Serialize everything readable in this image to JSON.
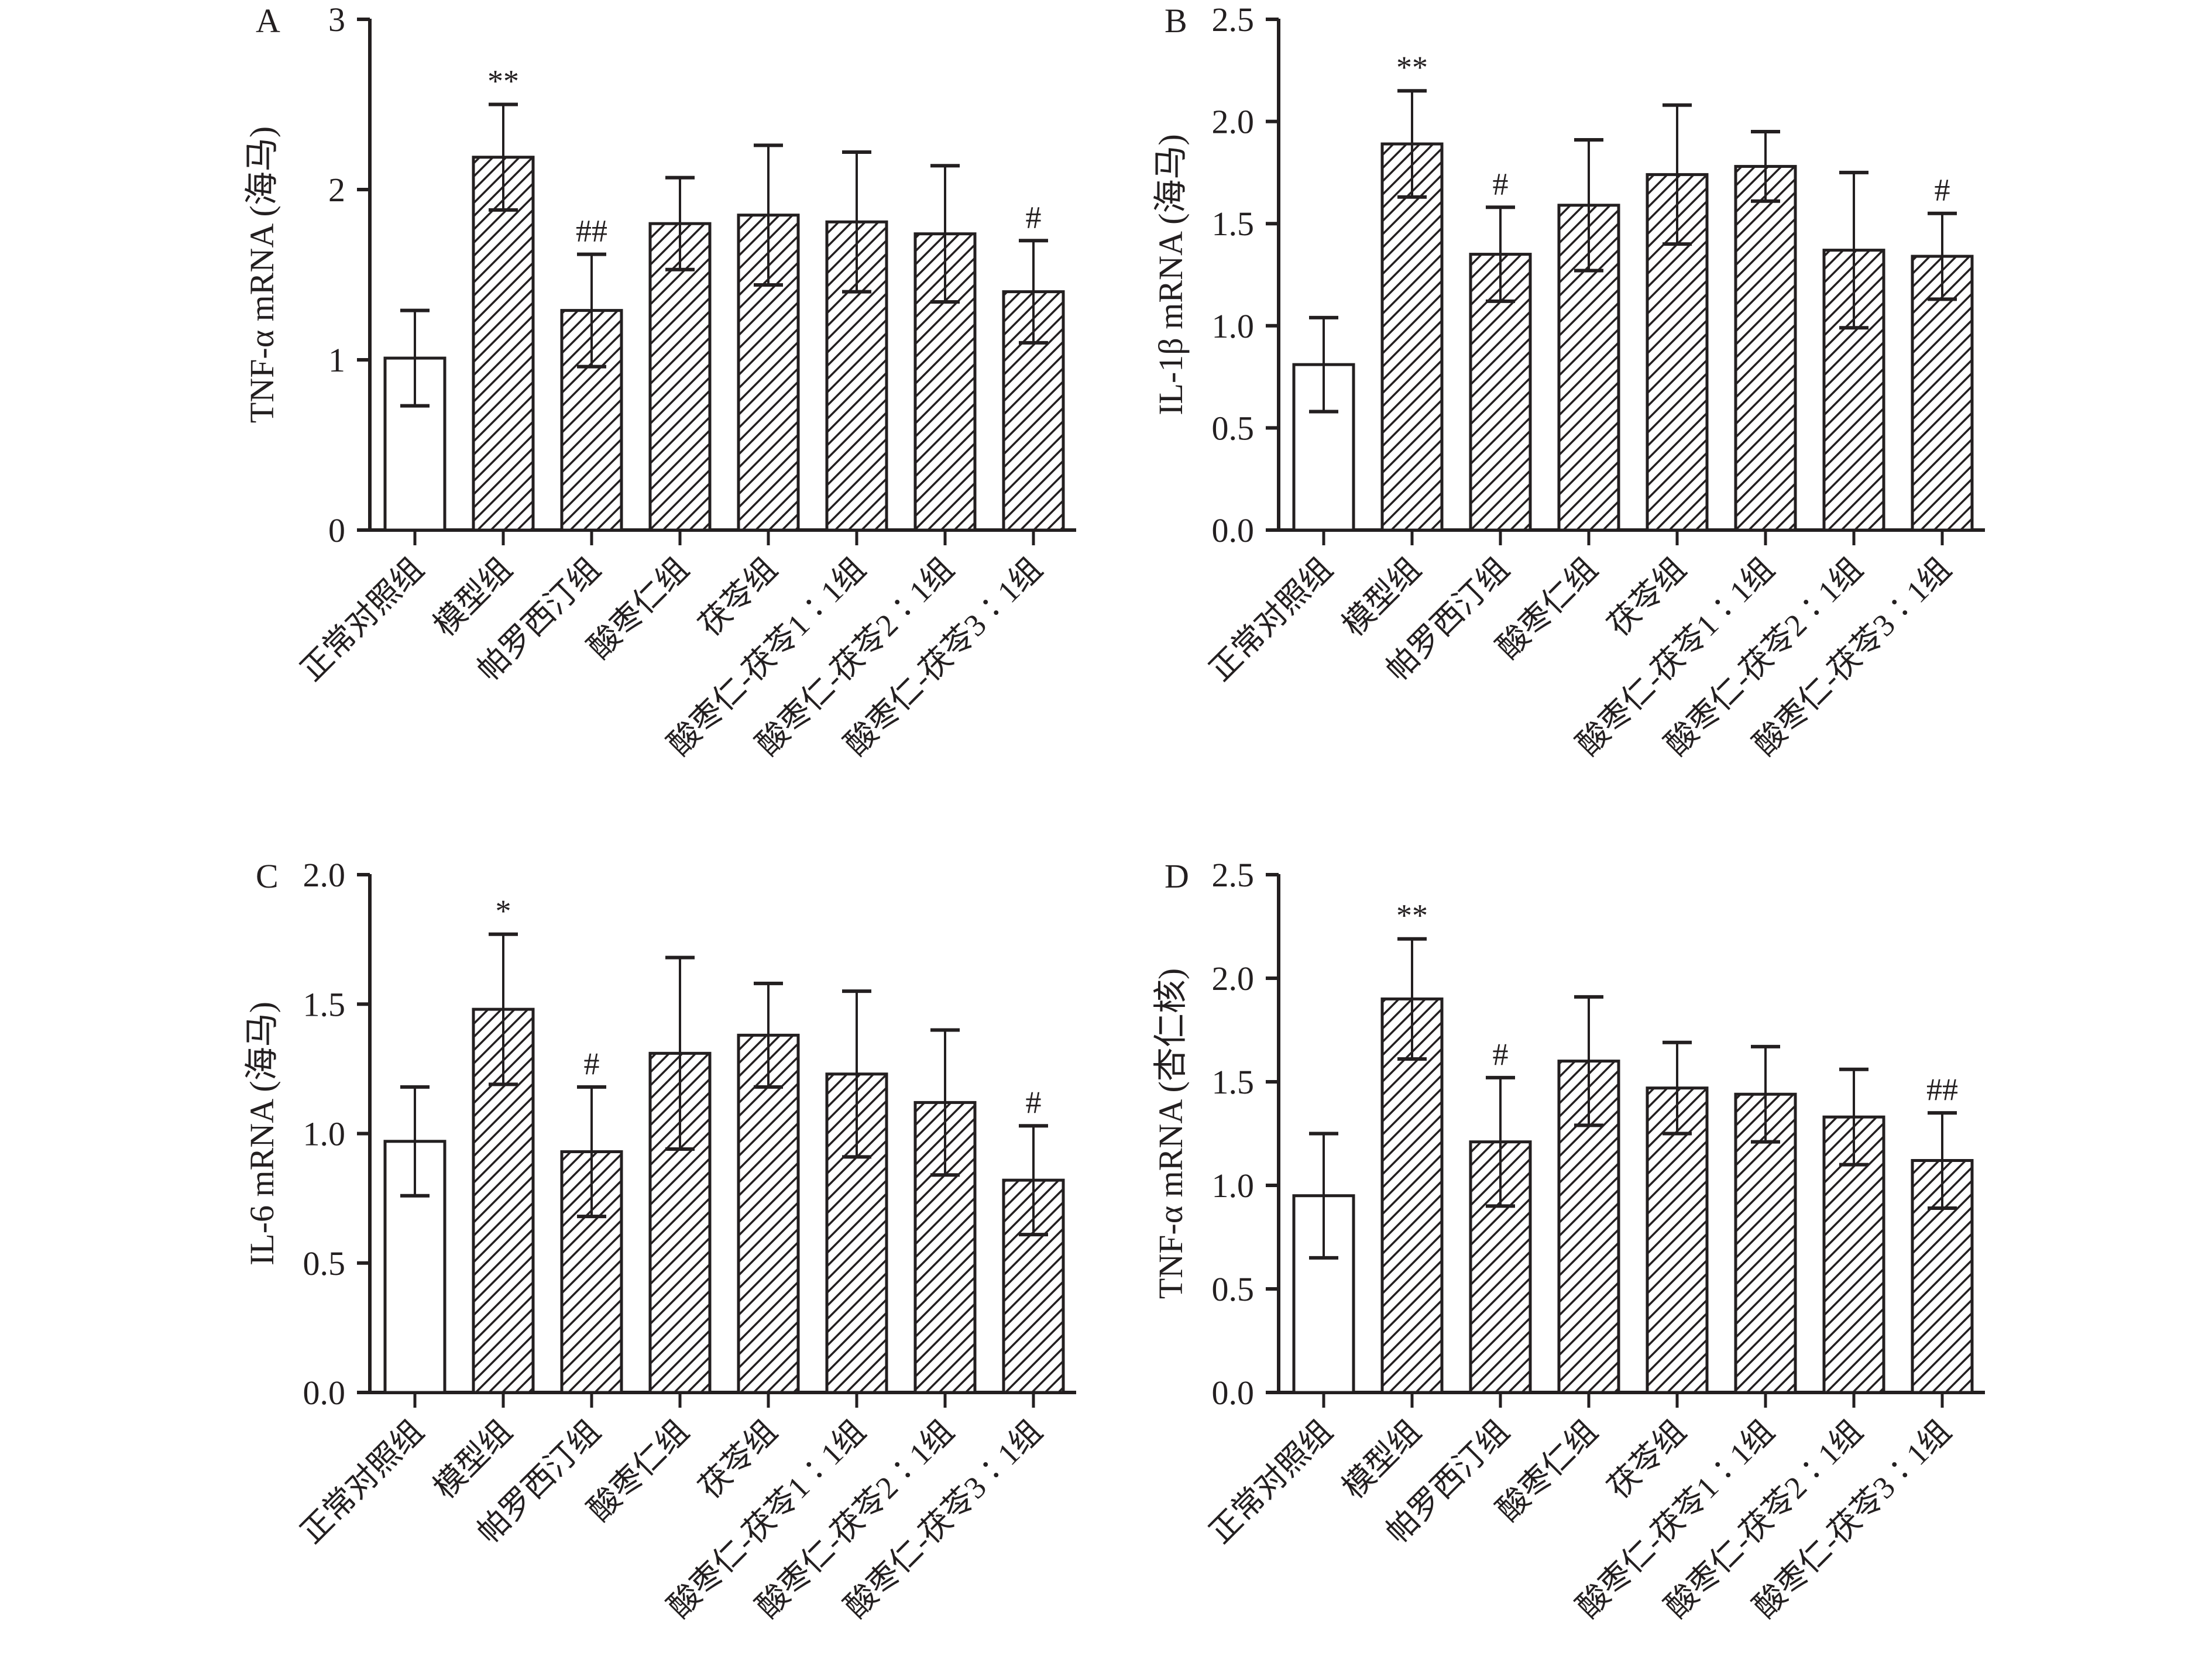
{
  "chart_data": [
    {
      "type": "bar",
      "panel": "A",
      "ylabel": "TNF-α mRNA (海马)",
      "ylim": [
        0,
        3
      ],
      "yticks": [
        "0",
        "1",
        "2",
        "3"
      ],
      "ytick_values": [
        0,
        1,
        2,
        3
      ],
      "categories": [
        "正常对照组",
        "模型组",
        "帕罗西汀组",
        "酸枣仁组",
        "茯苓组",
        "酸枣仁-茯苓1∶1组",
        "酸枣仁-茯苓2∶1组",
        "酸枣仁-茯苓3∶1组"
      ],
      "values": [
        1.01,
        2.19,
        1.29,
        1.8,
        1.85,
        1.81,
        1.74,
        1.4
      ],
      "error": [
        0.28,
        0.31,
        0.33,
        0.27,
        0.41,
        0.41,
        0.4,
        0.3
      ],
      "significance": [
        "",
        "**",
        "##",
        "",
        "",
        "",
        "",
        "#"
      ],
      "fill": [
        "open",
        "hatched",
        "hatched",
        "hatched",
        "hatched",
        "hatched",
        "hatched",
        "hatched"
      ]
    },
    {
      "type": "bar",
      "panel": "B",
      "ylabel": "IL-1β mRNA (海马)",
      "ylim": [
        0,
        2.5
      ],
      "yticks": [
        "0.0",
        "0.5",
        "1.0",
        "1.5",
        "2.0",
        "2.5"
      ],
      "ytick_values": [
        0,
        0.5,
        1.0,
        1.5,
        2.0,
        2.5
      ],
      "categories": [
        "正常对照组",
        "模型组",
        "帕罗西汀组",
        "酸枣仁组",
        "茯苓组",
        "酸枣仁-茯苓1∶1组",
        "酸枣仁-茯苓2∶1组",
        "酸枣仁-茯苓3∶1组"
      ],
      "values": [
        0.81,
        1.89,
        1.35,
        1.59,
        1.74,
        1.78,
        1.37,
        1.34
      ],
      "error": [
        0.23,
        0.26,
        0.23,
        0.32,
        0.34,
        0.17,
        0.38,
        0.21
      ],
      "significance": [
        "",
        "**",
        "#",
        "",
        "",
        "",
        "",
        "#"
      ],
      "fill": [
        "open",
        "hatched",
        "hatched",
        "hatched",
        "hatched",
        "hatched",
        "hatched",
        "hatched"
      ]
    },
    {
      "type": "bar",
      "panel": "C",
      "ylabel": "IL-6 mRNA (海马)",
      "ylim": [
        0,
        2.0
      ],
      "yticks": [
        "0.0",
        "0.5",
        "1.0",
        "1.5",
        "2.0"
      ],
      "ytick_values": [
        0,
        0.5,
        1.0,
        1.5,
        2.0
      ],
      "categories": [
        "正常对照组",
        "模型组",
        "帕罗西汀组",
        "酸枣仁组",
        "茯苓组",
        "酸枣仁-茯苓1∶1组",
        "酸枣仁-茯苓2∶1组",
        "酸枣仁-茯苓3∶1组"
      ],
      "values": [
        0.97,
        1.48,
        0.93,
        1.31,
        1.38,
        1.23,
        1.12,
        0.82
      ],
      "error": [
        0.21,
        0.29,
        0.25,
        0.37,
        0.2,
        0.32,
        0.28,
        0.21
      ],
      "significance": [
        "",
        "*",
        "#",
        "",
        "",
        "",
        "",
        "#"
      ],
      "fill": [
        "open",
        "hatched",
        "hatched",
        "hatched",
        "hatched",
        "hatched",
        "hatched",
        "hatched"
      ]
    },
    {
      "type": "bar",
      "panel": "D",
      "ylabel": "TNF-α mRNA (杏仁核)",
      "ylim": [
        0,
        2.5
      ],
      "yticks": [
        "0.0",
        "0.5",
        "1.0",
        "1.5",
        "2.0",
        "2.5"
      ],
      "ytick_values": [
        0,
        0.5,
        1.0,
        1.5,
        2.0,
        2.5
      ],
      "categories": [
        "正常对照组",
        "模型组",
        "帕罗西汀组",
        "酸枣仁组",
        "茯苓组",
        "酸枣仁-茯苓1∶1组",
        "酸枣仁-茯苓2∶1组",
        "酸枣仁-茯苓3∶1组"
      ],
      "values": [
        0.95,
        1.9,
        1.21,
        1.6,
        1.47,
        1.44,
        1.33,
        1.12
      ],
      "error": [
        0.3,
        0.29,
        0.31,
        0.31,
        0.22,
        0.23,
        0.23,
        0.23
      ],
      "significance": [
        "",
        "**",
        "#",
        "",
        "",
        "",
        "",
        "##"
      ],
      "fill": [
        "open",
        "hatched",
        "hatched",
        "hatched",
        "hatched",
        "hatched",
        "hatched",
        "hatched"
      ]
    }
  ]
}
